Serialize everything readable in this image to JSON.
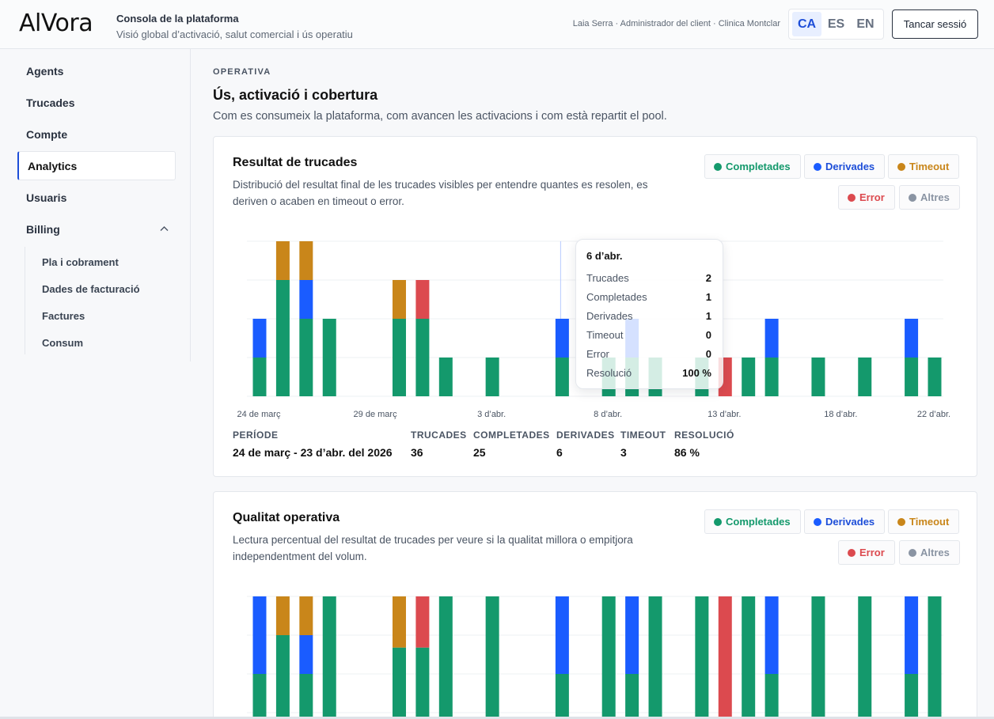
{
  "header": {
    "logo": "AlVora",
    "console_title": "Consola de la plataforma",
    "console_subtitle": "Visió global d’activació, salut comercial i ús operatiu",
    "user_line": "Laia Serra · Administrador del client · Clinica Montclar",
    "languages": [
      "CA",
      "ES",
      "EN"
    ],
    "active_language": "CA",
    "logout_label": "Tancar sessió"
  },
  "sidebar": {
    "items": [
      "Agents",
      "Trucades",
      "Compte",
      "Analytics",
      "Usuaris",
      "Billing"
    ],
    "active": "Analytics",
    "billing_sub": [
      "Pla i cobrament",
      "Dades de facturació",
      "Factures",
      "Consum"
    ]
  },
  "section": {
    "eyebrow": "OPERATIVA",
    "title": "Ús, activació i cobertura",
    "subtitle": "Com es consumeix la plataforma, com avancen les activacions i com està repartit el pool."
  },
  "legend": [
    {
      "label": "Completades",
      "color": "#14996c"
    },
    {
      "label": "Derivades",
      "color": "#1a5cff"
    },
    {
      "label": "Timeout",
      "color": "#c9861a"
    },
    {
      "label": "Error",
      "color": "#dc4a4f"
    },
    {
      "label": "Altres",
      "color": "#8a94a3"
    }
  ],
  "card1": {
    "title": "Resultat de trucades",
    "description": "Distribució del resultat final de les trucades visibles per entendre quantes es resolen, es deriven o acaben en timeout o error.",
    "stats": [
      {
        "label": "PERÍODE",
        "value": "24 de març - 23 d’abr. del 2026"
      },
      {
        "label": "TRUCADES",
        "value": "36"
      },
      {
        "label": "COMPLETADES",
        "value": "25"
      },
      {
        "label": "DERIVADES",
        "value": "6"
      },
      {
        "label": "TIMEOUT",
        "value": "3"
      },
      {
        "label": "RESOLUCIÓ",
        "value": "86 %"
      }
    ],
    "tooltip": {
      "title": "6 d’abr.",
      "rows": [
        {
          "label": "Trucades",
          "value": "2"
        },
        {
          "label": "Completades",
          "value": "1"
        },
        {
          "label": "Derivades",
          "value": "1"
        },
        {
          "label": "Timeout",
          "value": "0"
        },
        {
          "label": "Error",
          "value": "0"
        },
        {
          "label": "Resolució",
          "value": "100 %"
        }
      ]
    }
  },
  "card2": {
    "title": "Qualitat operativa",
    "description": "Lectura percentual del resultat de trucades per veure si la qualitat millora o empitjora independentment del volum."
  },
  "chart_data": [
    {
      "type": "bar",
      "stacked": true,
      "title": "Resultat de trucades",
      "x_tick_labels": [
        "24 de març",
        "29 de març",
        "3 d’abr.",
        "8 d’abr.",
        "13 d’abr.",
        "18 d’abr.",
        "22 d’abr."
      ],
      "x_tick_days": [
        0,
        5,
        10,
        15,
        20,
        25,
        29
      ],
      "days": [
        0,
        1,
        2,
        3,
        6,
        7,
        8,
        10,
        13,
        15,
        16,
        17,
        19,
        20,
        21,
        22,
        24,
        26,
        28,
        29
      ],
      "highlight_day": 13,
      "ylim": [
        0,
        4
      ],
      "grid": true,
      "series": [
        {
          "name": "Completades",
          "color": "#14996c",
          "values": [
            1,
            3,
            2,
            2,
            2,
            2,
            1,
            1,
            1,
            1,
            1,
            1,
            1,
            0,
            1,
            1,
            1,
            1,
            1,
            1
          ]
        },
        {
          "name": "Derivades",
          "color": "#1a5cff",
          "values": [
            1,
            0,
            1,
            0,
            0,
            0,
            0,
            0,
            1,
            0,
            1,
            0,
            0,
            0,
            0,
            1,
            0,
            0,
            1,
            0
          ]
        },
        {
          "name": "Timeout",
          "color": "#c9861a",
          "values": [
            0,
            1,
            1,
            0,
            1,
            0,
            0,
            0,
            0,
            0,
            0,
            0,
            0,
            0,
            0,
            0,
            0,
            0,
            0,
            0
          ]
        },
        {
          "name": "Error",
          "color": "#dc4a4f",
          "values": [
            0,
            0,
            0,
            0,
            0,
            1,
            0,
            0,
            0,
            0,
            0,
            0,
            0,
            1,
            0,
            0,
            0,
            0,
            0,
            0
          ]
        }
      ]
    },
    {
      "type": "bar",
      "stacked": true,
      "title": "Qualitat operativa",
      "ylim": [
        0,
        100
      ],
      "grid": true,
      "days": [
        0,
        1,
        2,
        3,
        6,
        7,
        8,
        10,
        13,
        15,
        16,
        17,
        19,
        20,
        21,
        22,
        24,
        26,
        28,
        29
      ],
      "series": [
        {
          "name": "Completades",
          "color": "#14996c",
          "values": [
            50,
            75,
            50,
            100,
            67,
            67,
            100,
            100,
            50,
            100,
            50,
            100,
            100,
            0,
            100,
            50,
            100,
            100,
            50,
            100
          ]
        },
        {
          "name": "Derivades",
          "color": "#1a5cff",
          "values": [
            50,
            0,
            25,
            0,
            0,
            0,
            0,
            0,
            50,
            0,
            50,
            0,
            0,
            0,
            0,
            50,
            0,
            0,
            50,
            0
          ]
        },
        {
          "name": "Timeout",
          "color": "#c9861a",
          "values": [
            0,
            25,
            25,
            0,
            33,
            0,
            0,
            0,
            0,
            0,
            0,
            0,
            0,
            0,
            0,
            0,
            0,
            0,
            0,
            0
          ]
        },
        {
          "name": "Error",
          "color": "#dc4a4f",
          "values": [
            0,
            0,
            0,
            0,
            0,
            33,
            0,
            0,
            0,
            0,
            0,
            0,
            0,
            100,
            0,
            0,
            0,
            0,
            0,
            0
          ]
        }
      ]
    }
  ]
}
